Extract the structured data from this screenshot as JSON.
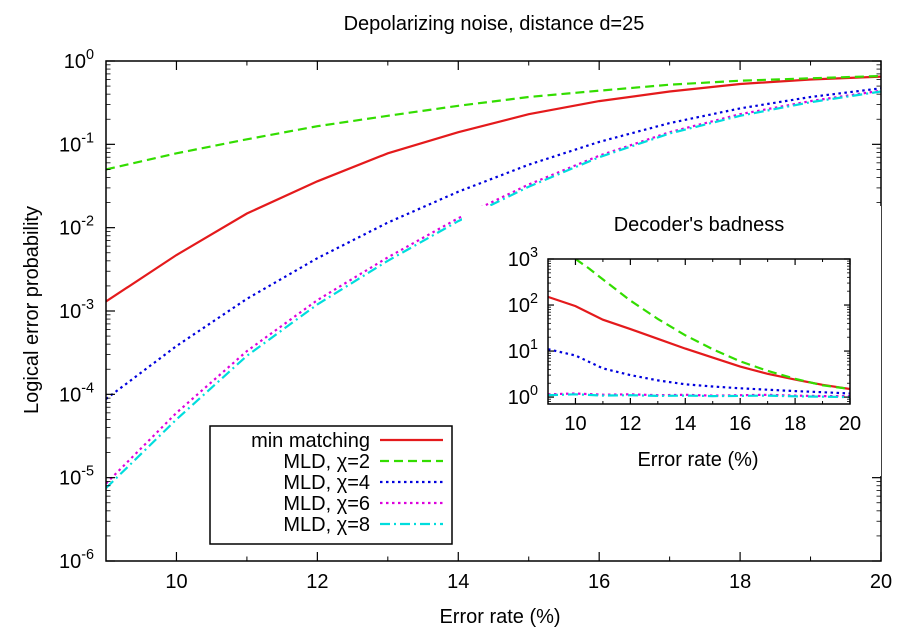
{
  "chart_data": [
    {
      "type": "line",
      "title": "Depolarizing noise, distance d=25",
      "xlabel": "Error rate (%)",
      "ylabel": "Logical error probability",
      "xlim": [
        9,
        20
      ],
      "ylim_exponent": [
        -6,
        0
      ],
      "yscale": "log",
      "grid": false,
      "legend_placement": "bottom-left",
      "x_ticks": [
        "10",
        "12",
        "14",
        "16",
        "18",
        "20"
      ],
      "y_ticks": [
        {
          "base": "10",
          "exp": "-6"
        },
        {
          "base": "10",
          "exp": "-5"
        },
        {
          "base": "10",
          "exp": "-4"
        },
        {
          "base": "10",
          "exp": "-3"
        },
        {
          "base": "10",
          "exp": "-2"
        },
        {
          "base": "10",
          "exp": "-1"
        },
        {
          "base": "10",
          "exp": "0"
        }
      ],
      "series": [
        {
          "name": "min matching",
          "color": "#e41a1c",
          "dash": "solid",
          "x": [
            9,
            10,
            11,
            12,
            13,
            14,
            15,
            16,
            17,
            18,
            19,
            20
          ],
          "y": [
            0.0013,
            0.0047,
            0.0148,
            0.036,
            0.078,
            0.14,
            0.23,
            0.33,
            0.43,
            0.53,
            0.6,
            0.65
          ]
        },
        {
          "name": "MLD, χ=2",
          "color": "#33dd00",
          "dash": "dashed",
          "x": [
            9,
            10,
            11,
            12,
            13,
            14,
            15,
            16,
            17,
            18,
            19,
            20
          ],
          "y": [
            0.05,
            0.078,
            0.115,
            0.165,
            0.22,
            0.29,
            0.37,
            0.44,
            0.52,
            0.58,
            0.62,
            0.66
          ]
        },
        {
          "name": "MLD, χ=4",
          "color": "#0000dd",
          "dash": "dotted",
          "x": [
            9,
            10,
            11,
            12,
            13,
            14,
            15,
            16,
            17,
            18,
            19,
            20
          ],
          "y": [
            8.8e-05,
            0.00038,
            0.0014,
            0.0043,
            0.0115,
            0.027,
            0.057,
            0.107,
            0.18,
            0.27,
            0.37,
            0.47
          ]
        },
        {
          "name": "MLD, χ=6",
          "color": "#dd00dd",
          "dash": "dotted",
          "x": [
            9,
            10,
            11,
            12,
            13,
            14,
            15,
            16,
            17,
            18,
            19,
            20
          ],
          "y": [
            8.5e-06,
            6e-05,
            0.00033,
            0.00135,
            0.0044,
            0.013,
            0.033,
            0.073,
            0.14,
            0.23,
            0.33,
            0.44
          ]
        },
        {
          "name": "MLD, χ=8",
          "color": "#00dddd",
          "dash": "dashdot",
          "x": [
            9,
            10,
            11,
            12,
            13,
            14,
            15,
            16,
            17,
            18,
            19,
            20
          ],
          "y": [
            7.5e-06,
            5e-05,
            0.00029,
            0.0012,
            0.004,
            0.012,
            0.031,
            0.07,
            0.135,
            0.22,
            0.32,
            0.43
          ]
        }
      ]
    },
    {
      "type": "line",
      "title": "Decoder's badness",
      "xlabel": "Error rate (%)",
      "ylabel": "",
      "xlim": [
        9,
        20
      ],
      "ylim_exponent": [
        -0.15,
        3
      ],
      "yscale": "log",
      "grid": false,
      "x_ticks": [
        "10",
        "12",
        "14",
        "16",
        "18",
        "20"
      ],
      "y_ticks": [
        {
          "base": "10",
          "exp": "0"
        },
        {
          "base": "10",
          "exp": "1"
        },
        {
          "base": "10",
          "exp": "2"
        },
        {
          "base": "10",
          "exp": "3"
        }
      ],
      "series": [
        {
          "color": "#e41a1c",
          "dash": "solid",
          "x": [
            9,
            10,
            11,
            12,
            13,
            14,
            15,
            16,
            17,
            18,
            19,
            20
          ],
          "y": [
            150,
            95,
            48,
            30,
            18.5,
            11.3,
            7.2,
            4.6,
            3.2,
            2.4,
            1.85,
            1.5
          ]
        },
        {
          "color": "#33dd00",
          "dash": "dashed",
          "x": [
            10,
            10.5,
            11,
            12,
            13,
            14,
            15,
            16,
            17,
            18,
            19,
            20
          ],
          "y": [
            1000,
            620,
            360,
            125,
            50,
            22,
            11,
            6,
            3.7,
            2.5,
            1.8,
            1.5
          ]
        },
        {
          "color": "#0000dd",
          "dash": "dotted",
          "x": [
            9,
            10,
            11,
            12,
            13,
            14,
            15,
            16,
            17,
            18,
            19,
            20
          ],
          "y": [
            11,
            8,
            4.2,
            3.0,
            2.3,
            1.9,
            1.7,
            1.55,
            1.45,
            1.35,
            1.28,
            1.2
          ]
        },
        {
          "color": "#dd00dd",
          "dash": "dotted",
          "x": [
            9,
            10,
            11,
            12,
            13,
            14,
            15,
            16,
            17,
            18,
            19,
            20
          ],
          "y": [
            1.15,
            1.2,
            1.13,
            1.15,
            1.1,
            1.12,
            1.08,
            1.1,
            1.12,
            1.08,
            1.05,
            1.05
          ]
        },
        {
          "color": "#00dddd",
          "dash": "dashdot",
          "x": [
            9,
            10,
            11,
            12,
            13,
            14,
            15,
            16,
            17,
            18,
            19,
            20
          ],
          "y": [
            1.1,
            1.15,
            1.08,
            1.1,
            1.06,
            1.08,
            1.05,
            1.06,
            1.08,
            1.04,
            1.02,
            1.0
          ]
        }
      ]
    }
  ]
}
